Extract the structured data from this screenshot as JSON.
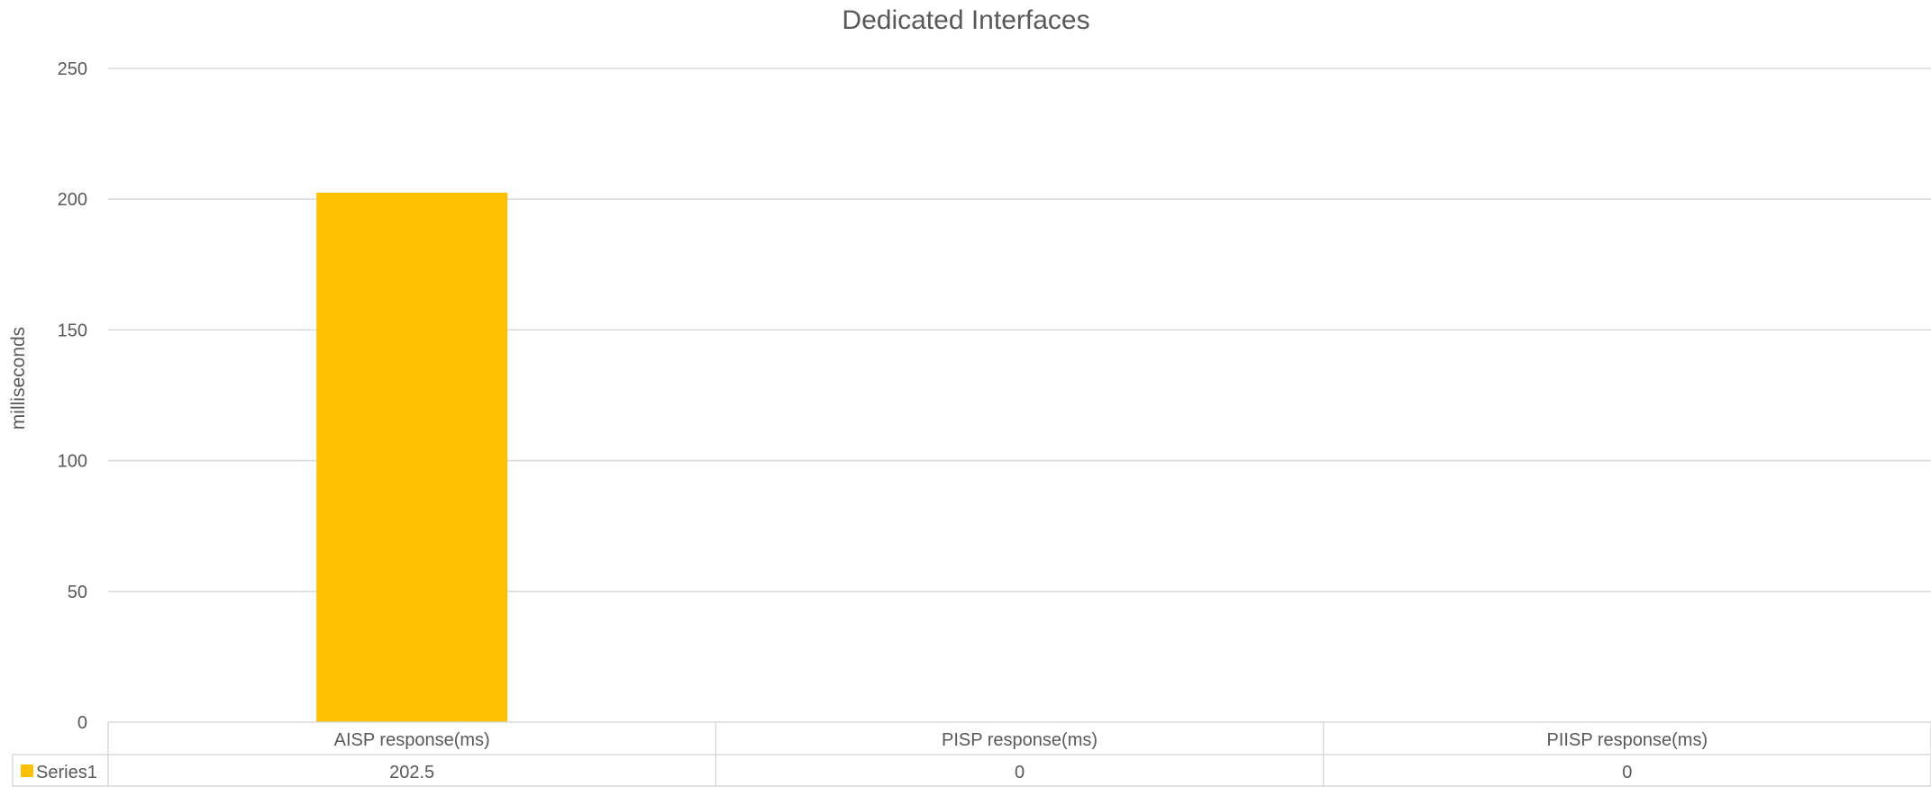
{
  "chart_data": {
    "type": "bar",
    "title": "Dedicated Interfaces",
    "ylabel": "milliseconds",
    "xlabel": "",
    "categories": [
      "AISP response(ms)",
      "PISP response(ms)",
      "PIISP response(ms)"
    ],
    "series": [
      {
        "name": "Series1",
        "values": [
          202.5,
          0,
          0
        ],
        "value_labels": [
          "202.5",
          "0",
          "0"
        ],
        "color": "#FFC000"
      }
    ],
    "ylim": [
      0,
      250
    ],
    "yticks": [
      0,
      50,
      100,
      150,
      200,
      250
    ],
    "grid": true,
    "legend": "data-table",
    "data_table": true
  }
}
